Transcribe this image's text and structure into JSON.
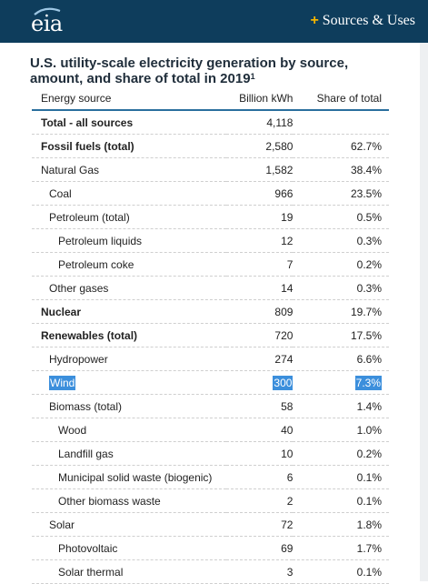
{
  "header": {
    "logo_text": "eia",
    "menu_label": "Sources & Uses",
    "menu_icon": "plus-icon",
    "colors": {
      "bar": "#0e3d5c",
      "accent": "#f4b400",
      "highlight": "#3c8fdc",
      "rule": "#2a6f9e"
    }
  },
  "title": "U.S. utility-scale electricity generation by source, amount, and share of total in 2019",
  "title_sup": "1",
  "table": {
    "columns": [
      "Energy source",
      "Billion kWh",
      "Share of total"
    ],
    "rows": [
      {
        "source": "Total - all sources",
        "kwh": "4,118",
        "share": "",
        "bold": true,
        "indent": 0
      },
      {
        "source": "Fossil fuels (total)",
        "kwh": "2,580",
        "share": "62.7%",
        "bold": true,
        "indent": 0
      },
      {
        "source": "Natural Gas",
        "kwh": "1,582",
        "share": "38.4%",
        "bold": false,
        "indent": 0
      },
      {
        "source": "Coal",
        "kwh": "966",
        "share": "23.5%",
        "bold": false,
        "indent": 1
      },
      {
        "source": "Petroleum (total)",
        "kwh": "19",
        "share": "0.5%",
        "bold": false,
        "indent": 1
      },
      {
        "source": "Petroleum liquids",
        "kwh": "12",
        "share": "0.3%",
        "bold": false,
        "indent": 2
      },
      {
        "source": "Petroleum coke",
        "kwh": "7",
        "share": "0.2%",
        "bold": false,
        "indent": 2
      },
      {
        "source": "Other gases",
        "kwh": "14",
        "share": "0.3%",
        "bold": false,
        "indent": 1
      },
      {
        "source": "Nuclear",
        "kwh": "809",
        "share": "19.7%",
        "bold": true,
        "indent": 0
      },
      {
        "source": "Renewables (total)",
        "kwh": "720",
        "share": "17.5%",
        "bold": true,
        "indent": 0
      },
      {
        "source": "Hydropower",
        "kwh": "274",
        "share": "6.6%",
        "bold": false,
        "indent": 1
      },
      {
        "source": "Wind",
        "kwh": "300",
        "share": "7.3%",
        "bold": false,
        "indent": 1,
        "highlight": true
      },
      {
        "source": "Biomass (total)",
        "kwh": "58",
        "share": "1.4%",
        "bold": false,
        "indent": 1
      },
      {
        "source": "Wood",
        "kwh": "40",
        "share": "1.0%",
        "bold": false,
        "indent": 2
      },
      {
        "source": "Landfill gas",
        "kwh": "10",
        "share": "0.2%",
        "bold": false,
        "indent": 2
      },
      {
        "source": "Municipal solid waste (biogenic)",
        "kwh": "6",
        "share": "0.1%",
        "bold": false,
        "indent": 2
      },
      {
        "source": "Other biomass waste",
        "kwh": "2",
        "share": "0.1%",
        "bold": false,
        "indent": 2
      },
      {
        "source": "Solar",
        "kwh": "72",
        "share": "1.8%",
        "bold": false,
        "indent": 1
      },
      {
        "source": "Photovoltaic",
        "kwh": "69",
        "share": "1.7%",
        "bold": false,
        "indent": 2
      },
      {
        "source": "Solar thermal",
        "kwh": "3",
        "share": "0.1%",
        "bold": false,
        "indent": 2
      }
    ]
  }
}
